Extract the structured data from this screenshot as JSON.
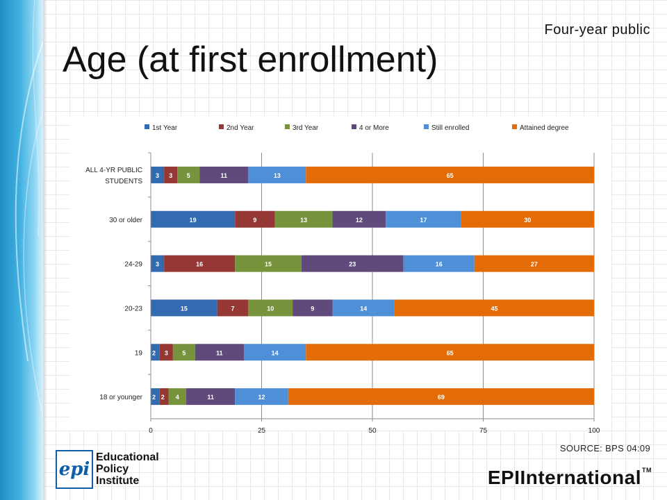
{
  "header": {
    "subtitle": "Four-year public",
    "title": "Age (at first enrollment)"
  },
  "footer": {
    "source": "SOURCE: BPS 04:09",
    "logo_left_mark": "epi",
    "logo_left_lines": [
      "Educational",
      "Policy",
      "Institute"
    ],
    "logo_right_text": "EPIInternational",
    "logo_right_tm": "TM"
  },
  "colors": {
    "sidebar": "#2a9fd6",
    "accent": "#e36c09"
  },
  "chart_data": {
    "type": "bar",
    "orientation": "horizontal",
    "stacked": true,
    "categories": [
      "ALL 4-YR PUBLIC STUDENTS",
      "30 or older",
      "24-29",
      "20-23",
      "19",
      "18 or younger"
    ],
    "series": [
      {
        "name": "1st Year",
        "color": "#336bb0",
        "values": [
          3,
          19,
          3,
          15,
          2,
          2
        ]
      },
      {
        "name": "2nd Year",
        "color": "#953734",
        "values": [
          3,
          9,
          16,
          7,
          3,
          2
        ]
      },
      {
        "name": "3rd Year",
        "color": "#77933c",
        "values": [
          5,
          13,
          15,
          10,
          5,
          4
        ]
      },
      {
        "name": "4 or More",
        "color": "#604a7b",
        "values": [
          11,
          12,
          23,
          9,
          11,
          11
        ]
      },
      {
        "name": "Still enrolled",
        "color": "#4f8fd8",
        "values": [
          13,
          17,
          16,
          14,
          14,
          12
        ]
      },
      {
        "name": "Attained degree",
        "color": "#e36c09",
        "values": [
          65,
          30,
          27,
          45,
          65,
          69
        ]
      }
    ],
    "xlim": [
      0,
      100
    ],
    "xticks": [
      0,
      25,
      50,
      75,
      100
    ],
    "grid": true,
    "legend_position": "top"
  }
}
